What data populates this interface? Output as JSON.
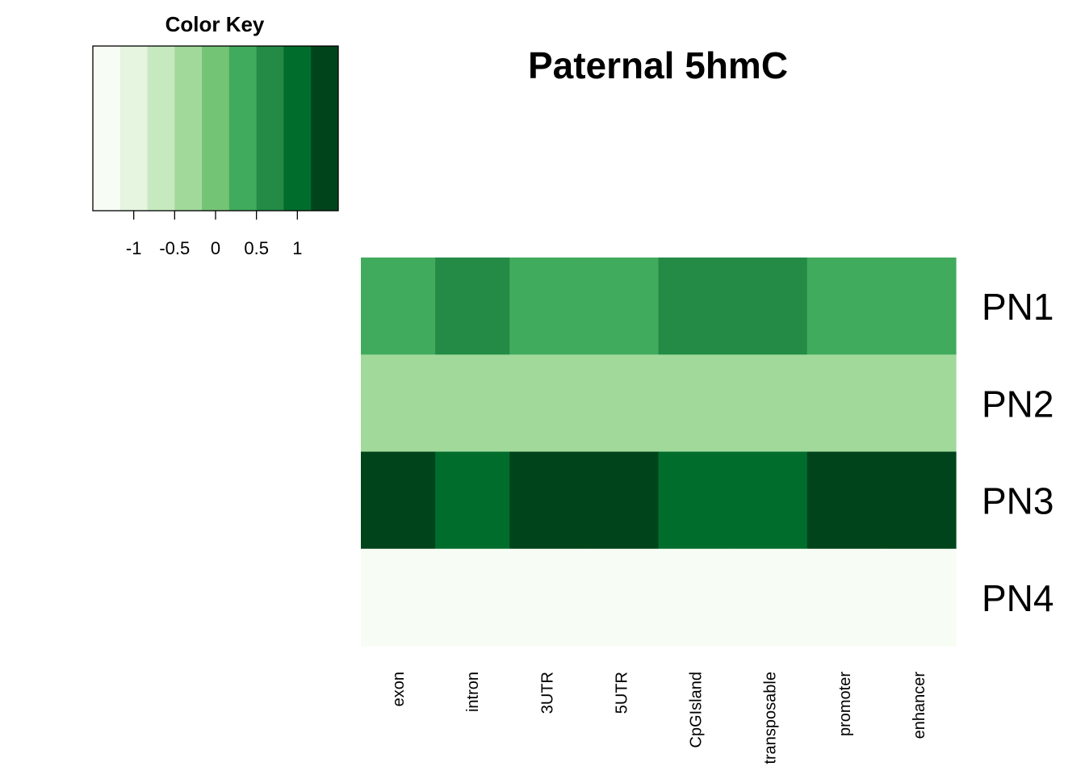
{
  "chart_data": {
    "type": "heatmap",
    "title": "Paternal 5hmC",
    "rows": [
      "PN1",
      "PN2",
      "PN3",
      "PN4"
    ],
    "columns": [
      "exon",
      "intron",
      "3UTR",
      "5UTR",
      "CpGIsland",
      "transposable",
      "promoter",
      "enhancer"
    ],
    "values": [
      [
        0.25,
        0.75,
        0.5,
        0.5,
        0.75,
        0.75,
        0.5,
        0.5
      ],
      [
        -0.25,
        -0.25,
        -0.25,
        -0.25,
        -0.25,
        -0.25,
        -0.25,
        -0.25
      ],
      [
        1.25,
        1.0,
        1.25,
        1.25,
        1.0,
        1.0,
        1.25,
        1.25
      ],
      [
        -1.25,
        -1.25,
        -1.25,
        -1.25,
        -1.25,
        -1.25,
        -1.25,
        -1.25
      ]
    ],
    "color_key": {
      "title": "Color Key",
      "range": [
        -1.5,
        1.5
      ],
      "breaks": [
        -1.5,
        -1.1667,
        -0.8333,
        -0.5,
        -0.1667,
        0.1667,
        0.5,
        0.8333,
        1.1667,
        1.5
      ],
      "colors": [
        "#F7FCF5",
        "#E5F5E0",
        "#C7E9C0",
        "#A1D99B",
        "#74C476",
        "#41AB5D",
        "#238B45",
        "#006D2C",
        "#00441B"
      ],
      "tick_values": [
        -1,
        -0.5,
        0,
        0.5,
        1
      ],
      "tick_labels": [
        "-1",
        "-0.5",
        "0",
        "0.5",
        "1"
      ]
    }
  }
}
